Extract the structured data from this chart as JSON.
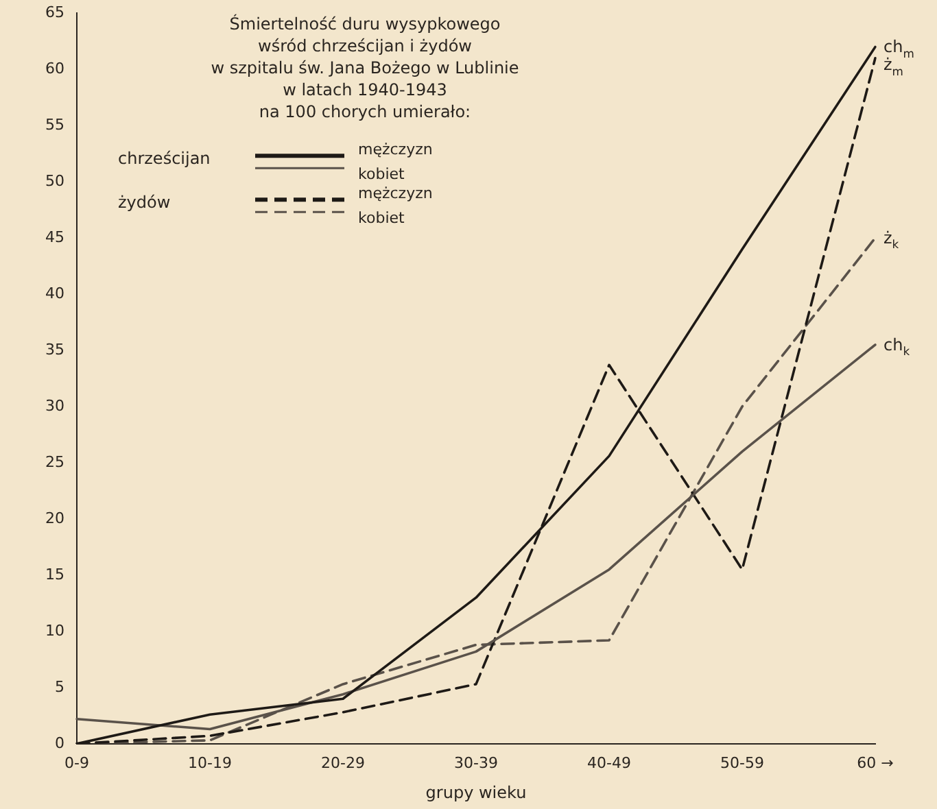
{
  "chart_data": {
    "type": "line",
    "title": "Śmiertelność duru wysypkowego\nwśród chrześcijan i żydów\nw szpitalu św. Jana Bożego w Lublinie\nw latach 1940-1943\nna 100 chorych umierało:",
    "xlabel": "grupy wieku",
    "categories": [
      "0-9",
      "10-19",
      "20-29",
      "30-39",
      "40-49",
      "50-59",
      "60 →"
    ],
    "series": [
      {
        "name": "ch$_{m}$",
        "color": "#1e1a16",
        "line_style": "solid",
        "values": [
          0,
          2.6,
          4,
          13,
          25.6,
          44,
          62
        ]
      },
      {
        "name": "ch$_{k}$",
        "color": "#5a524a",
        "line_style": "solid",
        "values": [
          2.2,
          1.3,
          4.4,
          8.2,
          15.5,
          26,
          35.5
        ]
      },
      {
        "name": "ż$_{m}$",
        "color": "#1e1a16",
        "line_style": "dashed",
        "values": [
          0,
          0.7,
          2.8,
          5.3,
          33.7,
          15.5,
          61
        ]
      },
      {
        "name": "ż$_{k}$",
        "color": "#5a524a",
        "line_style": "dashed",
        "values": [
          0,
          0.3,
          5.3,
          8.8,
          9.2,
          30,
          45
        ]
      }
    ],
    "annotations": [
      "chrześcijan",
      "mężczyzn",
      "kobiet",
      "żydów",
      "mężczyzn",
      "kobiet"
    ],
    "ylim": [
      0,
      65
    ],
    "yticks": [
      0,
      5,
      10,
      15,
      20,
      25,
      30,
      35,
      40,
      45,
      50,
      55,
      60,
      65
    ],
    "grid": false,
    "legend": "right",
    "marker": "none"
  }
}
